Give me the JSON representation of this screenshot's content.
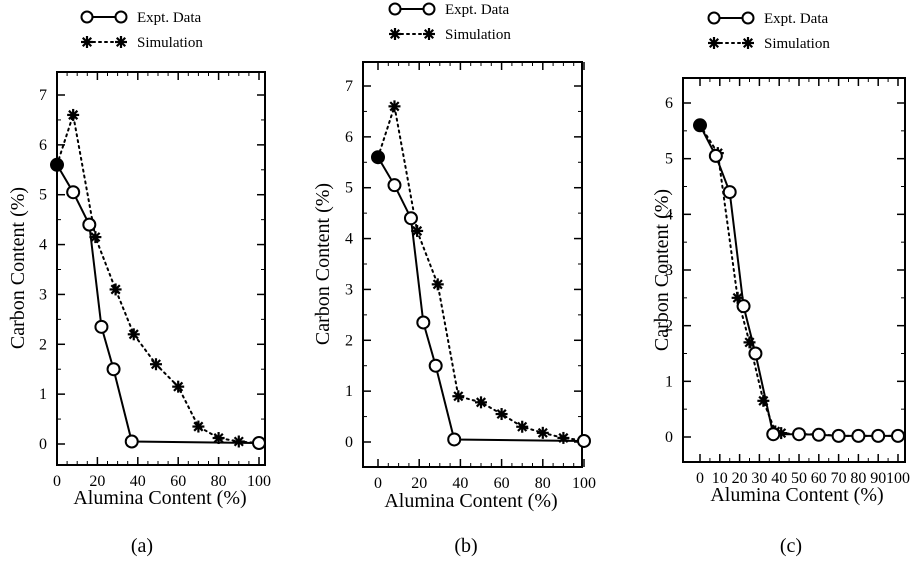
{
  "chart_data": [
    {
      "type": "line",
      "panel_label": "(a)",
      "xlabel": "Alumina Content (%)",
      "ylabel": "Carbon Content (%)",
      "xlim": [
        0,
        100
      ],
      "ylim": [
        -0.4,
        7.5
      ],
      "xticks": [
        "0",
        "20",
        "40",
        "60",
        "80",
        "100"
      ],
      "yticks": [
        "0",
        "1",
        "2",
        "3",
        "4",
        "5",
        "6",
        "7"
      ],
      "grid": false,
      "legend_position": "top",
      "series": [
        {
          "name": "Expt. Data",
          "x": [
            0,
            8,
            16,
            22,
            28,
            37,
            100
          ],
          "y": [
            5.6,
            5.05,
            4.4,
            2.35,
            1.5,
            0.05,
            0.02
          ]
        },
        {
          "name": "Simulation",
          "x": [
            0,
            8,
            19,
            29,
            38,
            49,
            60,
            70,
            80,
            90,
            100
          ],
          "y": [
            5.6,
            6.6,
            4.15,
            3.1,
            2.2,
            1.6,
            1.15,
            0.35,
            0.12,
            0.05,
            0.02
          ]
        }
      ]
    },
    {
      "type": "line",
      "panel_label": "(b)",
      "xlabel": "Alumina Content (%)",
      "ylabel": "Carbon Content (%)",
      "xlim": [
        0,
        100
      ],
      "ylim": [
        -0.4,
        7.5
      ],
      "xticks": [
        "0",
        "20",
        "40",
        "60",
        "80",
        "100"
      ],
      "yticks": [
        "0",
        "1",
        "2",
        "3",
        "4",
        "5",
        "6",
        "7"
      ],
      "grid": false,
      "legend_position": "top",
      "series": [
        {
          "name": "Expt. Data",
          "x": [
            0,
            8,
            16,
            22,
            28,
            37,
            100
          ],
          "y": [
            5.6,
            5.05,
            4.4,
            2.35,
            1.5,
            0.05,
            0.02
          ]
        },
        {
          "name": "Simulation",
          "x": [
            0,
            8,
            19,
            29,
            39,
            50,
            60,
            70,
            80,
            90,
            100
          ],
          "y": [
            5.6,
            6.6,
            4.15,
            3.1,
            0.9,
            0.78,
            0.55,
            0.3,
            0.18,
            0.08,
            0.03
          ]
        }
      ]
    },
    {
      "type": "line",
      "panel_label": "(c)",
      "xlabel": "Alumina Content (%)",
      "ylabel": "Carbon Content (%)",
      "xlim": [
        0,
        100
      ],
      "ylim": [
        -0.4,
        6.5
      ],
      "xticks": [
        "0",
        "10",
        "20",
        "30",
        "40",
        "50",
        "60",
        "70",
        "80",
        "90",
        "100"
      ],
      "yticks": [
        "0",
        "1",
        "2",
        "3",
        "4",
        "5",
        "6"
      ],
      "grid": false,
      "legend_position": "top",
      "series": [
        {
          "name": "Expt. Data",
          "x": [
            0,
            8,
            15,
            22,
            28,
            37,
            50,
            60,
            70,
            80,
            90,
            100
          ],
          "y": [
            5.6,
            5.05,
            4.4,
            2.35,
            1.5,
            0.05,
            0.05,
            0.04,
            0.02,
            0.02,
            0.02,
            0.02
          ]
        },
        {
          "name": "Simulation",
          "x": [
            0,
            9,
            19,
            25,
            32,
            38,
            41,
            50,
            60,
            70,
            80,
            90,
            100
          ],
          "y": [
            5.6,
            5.1,
            2.5,
            1.7,
            0.65,
            0.1,
            0.07,
            0.05,
            0.05,
            0.02,
            0.02,
            0.02,
            0.02
          ]
        }
      ]
    }
  ]
}
